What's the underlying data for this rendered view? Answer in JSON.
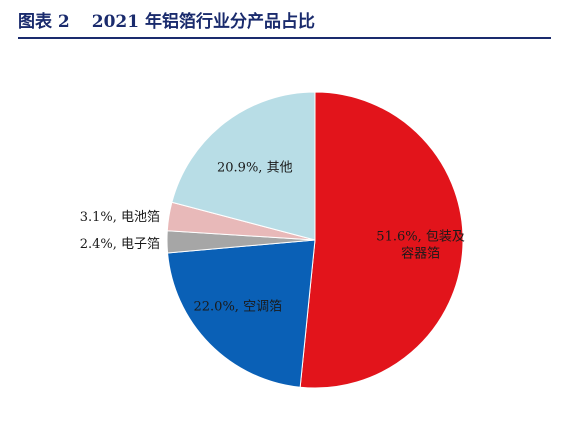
{
  "header": {
    "figure_number": "图表 2",
    "title": "2021 年铝箔行业分产品占比"
  },
  "chart_data": {
    "type": "pie",
    "start_angle_deg": 0,
    "direction": "clockwise",
    "slices": [
      {
        "value": 51.6,
        "label_lines": [
          "51.6%, 包装及",
          "容器箔"
        ],
        "color": "#e2141b",
        "label_position": "inside",
        "label_color": "#1a1a1a"
      },
      {
        "value": 22.0,
        "label_lines": [
          "22.0%, 空调箔"
        ],
        "color": "#0a60b6",
        "label_position": "inside",
        "label_color": "#1a1a1a"
      },
      {
        "value": 2.4,
        "label_lines": [
          "2.4%, 电子箔"
        ],
        "color": "#a6a6a6",
        "label_position": "outside",
        "label_color": "#1a1a1a"
      },
      {
        "value": 3.1,
        "label_lines": [
          "3.1%, 电池箔"
        ],
        "color": "#e8b9b9",
        "label_position": "outside",
        "label_color": "#1a1a1a"
      },
      {
        "value": 20.9,
        "label_lines": [
          "20.9%, 其他"
        ],
        "color": "#b8dde6",
        "label_position": "inside",
        "label_color": "#1a1a1a"
      }
    ]
  }
}
